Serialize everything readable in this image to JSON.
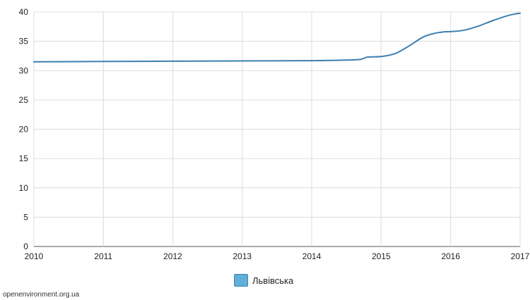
{
  "chart_data": {
    "type": "line",
    "title": "",
    "xlabel": "",
    "ylabel": "",
    "xlim": [
      2010,
      2017
    ],
    "ylim": [
      0,
      40
    ],
    "x_ticks": [
      "2010",
      "2011",
      "2012",
      "2013",
      "2014",
      "2015",
      "2016",
      "2017"
    ],
    "y_ticks": [
      "0",
      "5",
      "10",
      "15",
      "20",
      "25",
      "30",
      "35",
      "40"
    ],
    "grid": true,
    "legend_position": "bottom",
    "series": [
      {
        "name": "Львівська",
        "color": "#3d7fb0",
        "swatch_color": "#62afd9",
        "x": [
          2010,
          2011,
          2012,
          2013,
          2014,
          2014.2,
          2014.5,
          2014.7,
          2014.8,
          2015,
          2015.2,
          2015.4,
          2015.6,
          2015.75,
          2015.9,
          2016,
          2016.2,
          2016.4,
          2016.6,
          2016.8,
          2016.9,
          2017
        ],
        "y": [
          31.5,
          31.55,
          31.6,
          31.65,
          31.7,
          31.72,
          31.8,
          31.9,
          32.3,
          32.4,
          32.9,
          34.2,
          35.7,
          36.3,
          36.6,
          36.65,
          36.9,
          37.6,
          38.5,
          39.3,
          39.6,
          39.8
        ]
      }
    ]
  },
  "source": "openenvironment.org.ua"
}
